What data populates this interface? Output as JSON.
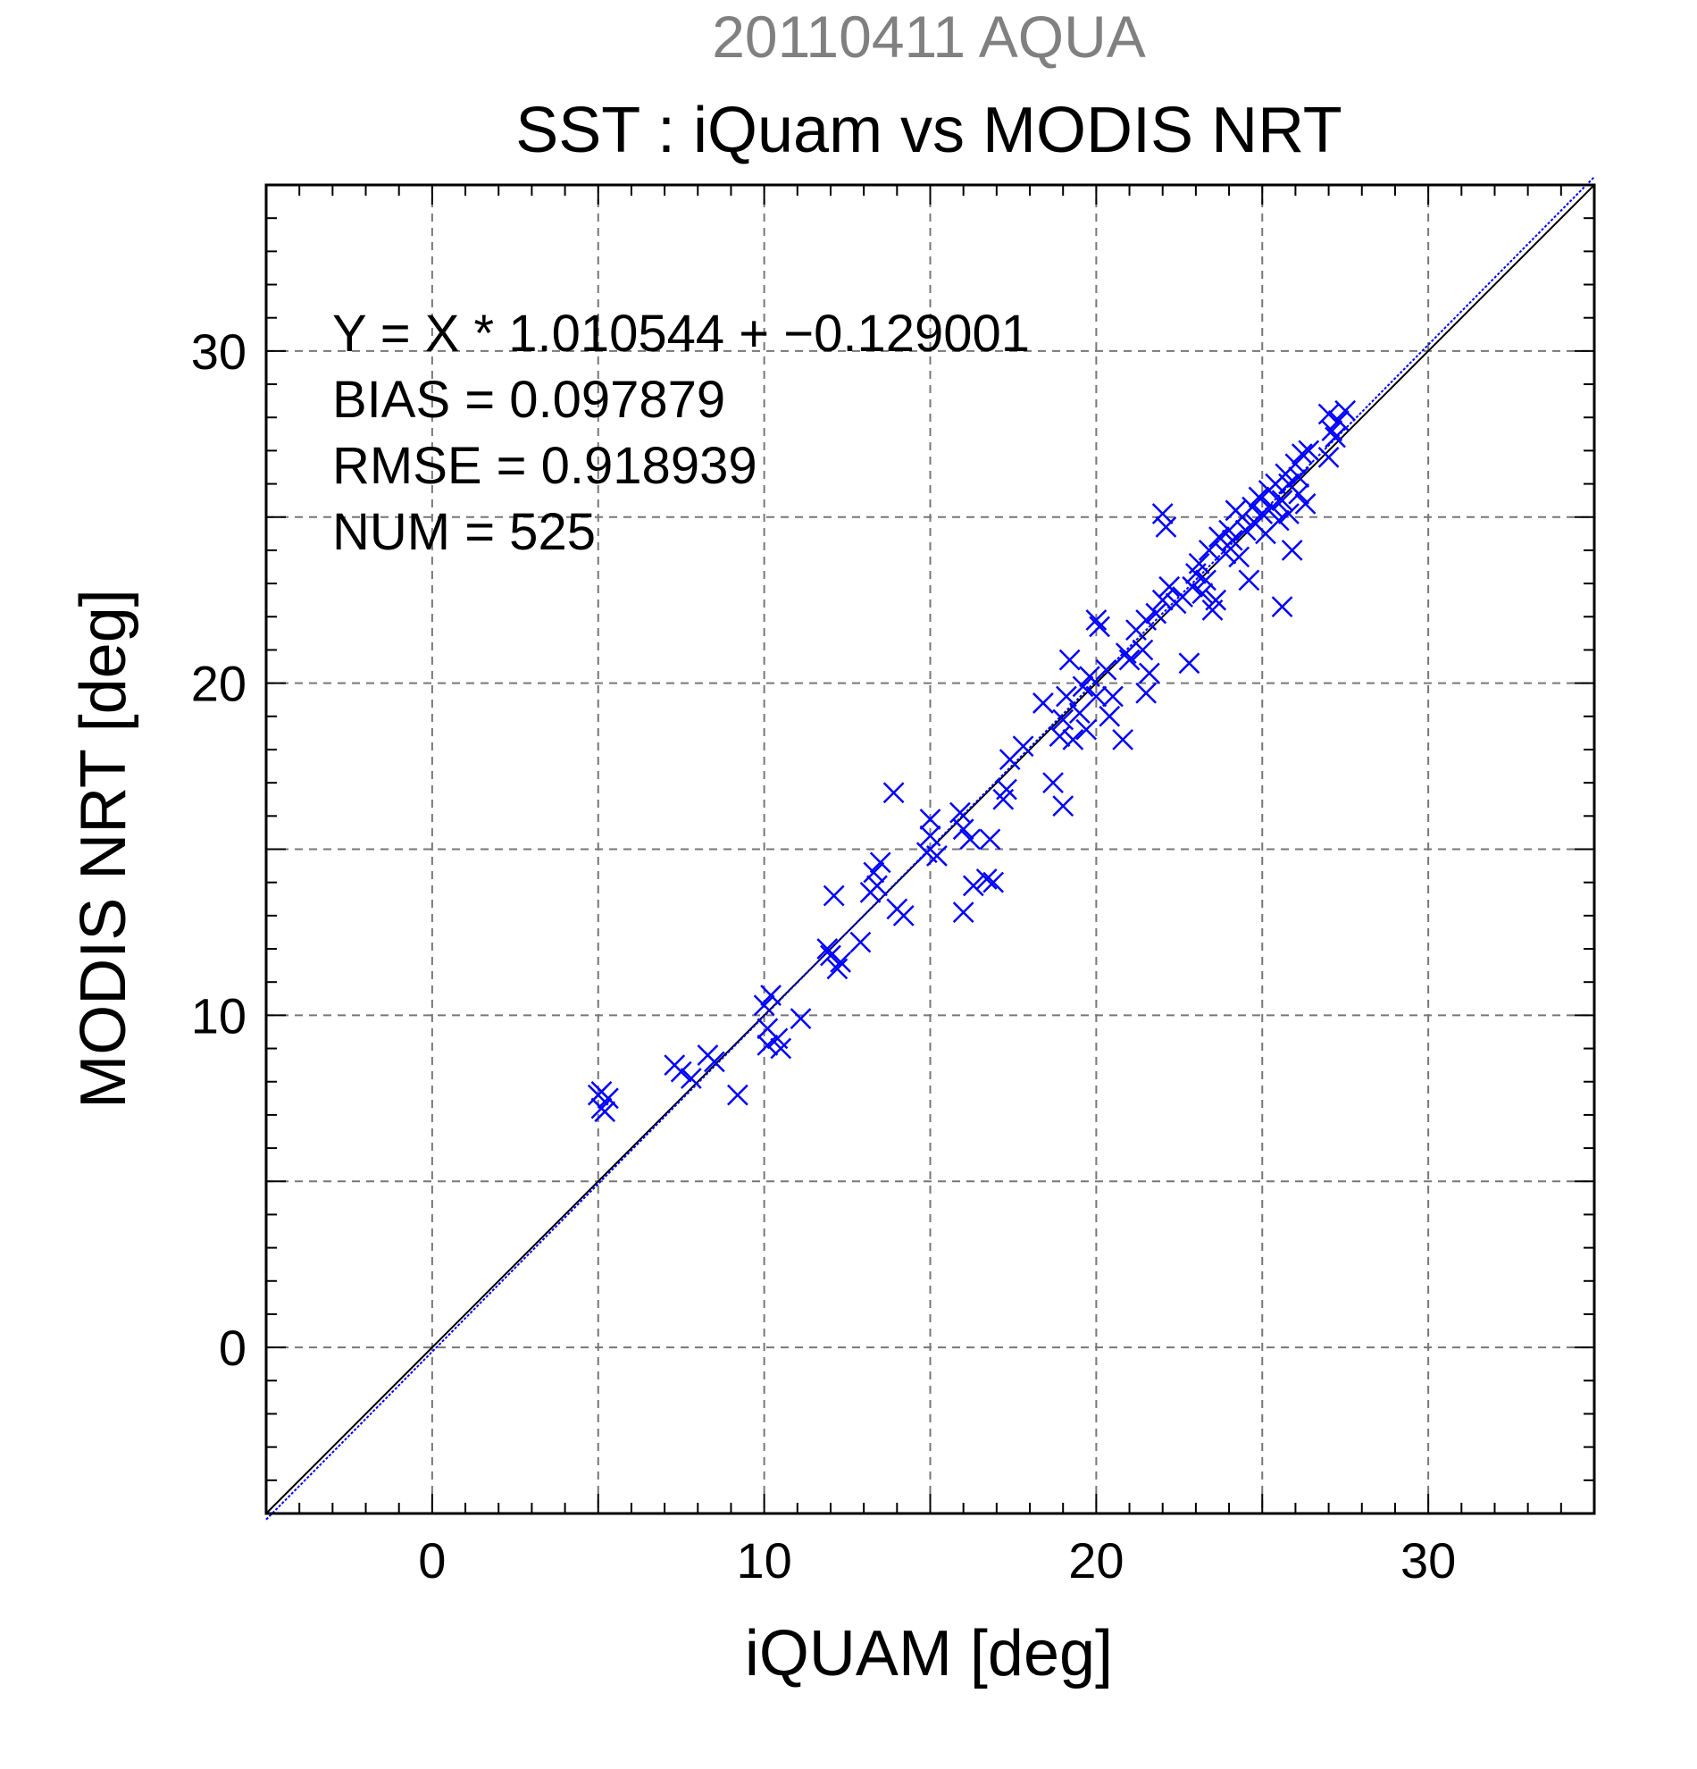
{
  "chart_data": {
    "type": "scatter",
    "supertitle": "20110411 AQUA",
    "title": "SST : iQuam vs MODIS NRT",
    "xlabel": "iQUAM [deg]",
    "ylabel": "MODIS NRT [deg]",
    "xlim": [
      -5,
      35
    ],
    "ylim": [
      -5,
      35
    ],
    "xticks": [
      0,
      10,
      20,
      30
    ],
    "yticks": [
      0,
      10,
      20,
      30
    ],
    "grid": true,
    "marker": "x",
    "colors": {
      "points": "#0000ff",
      "fit_line": "#0000ff",
      "one_to_one": "#000000",
      "grid": "#777777",
      "supertitle": "#808080"
    },
    "stats": [
      "Y = X * 1.010544 + −0.129001",
      "BIAS = 0.097879",
      "RMSE = 0.918939",
      "NUM = 525"
    ],
    "fit": {
      "slope": 1.010544,
      "intercept": -0.129001
    },
    "series": [
      {
        "values": [
          [
            5.0,
            7.6
          ],
          [
            5.1,
            7.7
          ],
          [
            5.2,
            7.1
          ],
          [
            5.3,
            7.5
          ],
          [
            5.1,
            7.2
          ],
          [
            7.3,
            8.5
          ],
          [
            7.5,
            8.3
          ],
          [
            7.8,
            8.1
          ],
          [
            8.3,
            8.8
          ],
          [
            8.5,
            8.6
          ],
          [
            9.2,
            7.6
          ],
          [
            10.0,
            10.3
          ],
          [
            10.1,
            9.6
          ],
          [
            10.2,
            10.6
          ],
          [
            10.1,
            9.1
          ],
          [
            10.4,
            9.3
          ],
          [
            10.5,
            9.0
          ],
          [
            11.1,
            9.9
          ],
          [
            11.9,
            12.0
          ],
          [
            12.0,
            11.8
          ],
          [
            12.2,
            11.4
          ],
          [
            12.3,
            11.6
          ],
          [
            12.9,
            12.2
          ],
          [
            13.2,
            13.7
          ],
          [
            13.3,
            14.3
          ],
          [
            13.5,
            14.6
          ],
          [
            13.4,
            13.9
          ],
          [
            14.0,
            13.2
          ],
          [
            14.2,
            13.0
          ],
          [
            12.1,
            13.6
          ],
          [
            13.9,
            16.7
          ],
          [
            14.9,
            14.9
          ],
          [
            15.0,
            15.4
          ],
          [
            15.2,
            14.8
          ],
          [
            15.0,
            15.9
          ],
          [
            16.0,
            15.6
          ],
          [
            16.2,
            15.3
          ],
          [
            15.9,
            16.1
          ],
          [
            16.0,
            13.1
          ],
          [
            16.3,
            13.9
          ],
          [
            16.7,
            14.1
          ],
          [
            16.8,
            15.3
          ],
          [
            16.9,
            14.0
          ],
          [
            17.2,
            16.5
          ],
          [
            17.3,
            16.8
          ],
          [
            17.4,
            17.7
          ],
          [
            17.8,
            18.1
          ],
          [
            18.4,
            19.4
          ],
          [
            18.7,
            17.0
          ],
          [
            18.9,
            18.4
          ],
          [
            19.0,
            16.3
          ],
          [
            19.0,
            18.9
          ],
          [
            19.1,
            19.6
          ],
          [
            19.2,
            20.7
          ],
          [
            19.3,
            18.3
          ],
          [
            19.5,
            19.1
          ],
          [
            19.6,
            19.9
          ],
          [
            19.7,
            18.6
          ],
          [
            19.8,
            20.2
          ],
          [
            20.0,
            19.6
          ],
          [
            20.0,
            21.9
          ],
          [
            20.1,
            21.7
          ],
          [
            20.3,
            20.4
          ],
          [
            20.4,
            19.0
          ],
          [
            20.5,
            19.6
          ],
          [
            20.8,
            18.3
          ],
          [
            20.9,
            20.9
          ],
          [
            21.0,
            20.7
          ],
          [
            21.2,
            21.6
          ],
          [
            21.4,
            21.0
          ],
          [
            21.5,
            21.9
          ],
          [
            21.5,
            19.7
          ],
          [
            21.6,
            20.3
          ],
          [
            21.8,
            22.1
          ],
          [
            22.0,
            22.5
          ],
          [
            22.0,
            25.1
          ],
          [
            22.1,
            24.7
          ],
          [
            22.2,
            22.9
          ],
          [
            22.4,
            22.4
          ],
          [
            22.6,
            22.6
          ],
          [
            22.8,
            20.6
          ],
          [
            22.9,
            22.9
          ],
          [
            23.0,
            23.3
          ],
          [
            23.1,
            23.6
          ],
          [
            23.2,
            22.7
          ],
          [
            23.3,
            23.1
          ],
          [
            23.4,
            24.0
          ],
          [
            23.5,
            22.2
          ],
          [
            23.6,
            22.5
          ],
          [
            23.7,
            24.4
          ],
          [
            23.9,
            23.9
          ],
          [
            24.0,
            24.6
          ],
          [
            24.1,
            24.3
          ],
          [
            24.2,
            25.2
          ],
          [
            24.3,
            23.8
          ],
          [
            24.4,
            25.0
          ],
          [
            24.5,
            24.6
          ],
          [
            24.6,
            23.1
          ],
          [
            24.7,
            25.3
          ],
          [
            24.8,
            24.8
          ],
          [
            24.9,
            25.6
          ],
          [
            25.0,
            25.1
          ],
          [
            25.1,
            24.5
          ],
          [
            25.2,
            25.8
          ],
          [
            25.3,
            25.3
          ],
          [
            25.4,
            26.0
          ],
          [
            25.5,
            24.9
          ],
          [
            25.6,
            25.5
          ],
          [
            25.7,
            26.3
          ],
          [
            25.8,
            26.0
          ],
          [
            25.9,
            24.0
          ],
          [
            25.6,
            22.3
          ],
          [
            26.0,
            26.6
          ],
          [
            26.1,
            26.2
          ],
          [
            26.2,
            26.9
          ],
          [
            26.3,
            25.4
          ],
          [
            26.1,
            25.7
          ],
          [
            25.8,
            25.1
          ],
          [
            26.4,
            27.0
          ],
          [
            27.0,
            28.1
          ],
          [
            27.1,
            27.6
          ],
          [
            27.2,
            27.4
          ],
          [
            27.0,
            26.8
          ],
          [
            27.3,
            27.9
          ],
          [
            27.5,
            28.2
          ]
        ]
      }
    ]
  }
}
